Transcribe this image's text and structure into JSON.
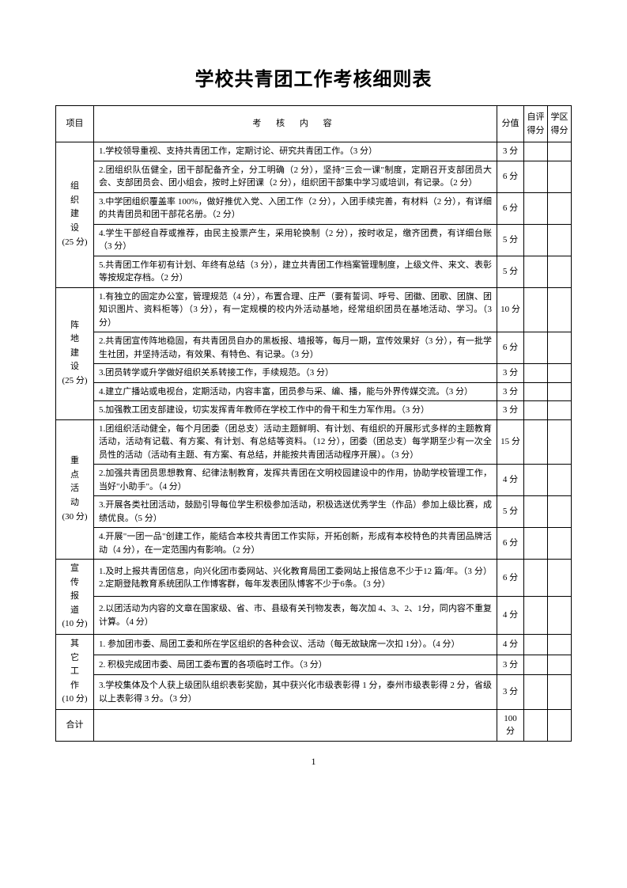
{
  "title": "学校共青团工作考核细则表",
  "headers": {
    "project": "项目",
    "content": "考 核 内 容",
    "score": "分值",
    "self": "自评得分",
    "district": "学区得分"
  },
  "sections": [
    {
      "name": "组织建设",
      "total": "25 分",
      "rows": [
        {
          "text": "1.学校领导重视、支持共青团工作，定期讨论、研究共青团工作。（3 分）",
          "score": "3 分"
        },
        {
          "text": "2.团组织队伍健全，团干部配备齐全，分工明确（2 分），坚持\"三会一课\"制度，定期召开支部团员大会、支部团员会、团小组会，按时上好团课（2 分），组织团干部集中学习或培训，有记录。（2 分）",
          "score": "6 分"
        },
        {
          "text": "3.中学团组织覆盖率 100%，做好推优入党、入团工作（2 分），入团手续完善，有材料（2 分），有详细的共青团员和团干部花名册。（2 分）",
          "score": "6 分"
        },
        {
          "text": "4.学生干部经自荐或推荐，由民主投票产生，采用轮换制（2 分），按时收足，缴齐团费，有详细台账（3 分）",
          "score": "5 分"
        },
        {
          "text": "5.共青团工作年初有计划、年终有总结（3 分），建立共青团工作档案管理制度，上级文件、来文、表彰等按规定存档。（2 分）",
          "score": "5 分"
        }
      ]
    },
    {
      "name": "阵地建设",
      "total": "25 分",
      "rows": [
        {
          "text": "1.有独立的固定办公室，管理规范（4 分），布置合理、庄严（要有誓词、呼号、团徽、团歌、团旗、团知识图片、资料柜等）（3 分），有一定规模的校内外活动基地，经常组织团员在基地活动、学习。（3 分）",
          "score": "10 分"
        },
        {
          "text": "2.共青团宣传阵地稳固，有共青团员自办的黑板报、墙报等，每月一期，宣传效果好（3 分），有一批学生社团，并坚持活动，有效果、有特色、有记录。（3 分）",
          "score": "6 分"
        },
        {
          "text": "3.团员转学或升学做好组织关系转接工作，手续规范。（3 分）",
          "score": "3 分"
        },
        {
          "text": "4.建立广播站或电视台，定期活动，内容丰富，团员参与采、编、播，能与外界传媒交流。（3 分）",
          "score": "3 分"
        },
        {
          "text": "5.加强教工团支部建设，切实发挥青年教师在学校工作中的骨干和生力军作用。（3 分）",
          "score": "3 分"
        }
      ]
    },
    {
      "name": "重点活动",
      "total": "30 分",
      "rows": [
        {
          "text": "1.团组织活动健全，每个月团委（团总支）活动主题鲜明、有计划、有组织的开展形式多样的主题教育活动，活动有记载、有方案、有计划、有总结等资料。（12 分），团委（团总支）每学期至少有一次全员性的活动（活动有主题、有方案、有总结，并能按共青团活动程序开展）。（3 分）",
          "score": "15 分"
        },
        {
          "text": "2.加强共青团员思想教育、纪律法制教育，发挥共青团在文明校园建设中的作用，协助学校管理工作，当好\"小助手\"。（4 分）",
          "score": "4 分"
        },
        {
          "text": "3.开展各类社团活动，鼓励引导每位学生积极参加活动，积极选送优秀学生（作品）参加上级比赛，成绩优良。（5 分）",
          "score": "5 分"
        },
        {
          "text": "4.开展\"一团一品\"创建工作，能结合本校共青团工作实际，开拓创新，形成有本校特色的共青团品牌活动（4 分），在一定范围内有影响。（2 分）",
          "score": "6 分"
        }
      ]
    },
    {
      "name": "宣传报道",
      "total": "10 分",
      "rows": [
        {
          "text": "1.及时上报共青团信息，向兴化团市委网站、兴化教育局团工委网站上报信息不少于12 篇/年。（3 分）2.定期登陆教育系统团队工作博客群，每年发表团队博客不少于6条。（3 分）",
          "score": "6 分"
        },
        {
          "text": "2.以团活动为内容的文章在国家级、省、市、县级有关刊物发表，每次加 4、3、2、1分，同内容不重复计算。（4 分）",
          "score": "4 分"
        }
      ]
    },
    {
      "name": "其它工作",
      "total": "10 分",
      "rows": [
        {
          "text": "1. 参加团市委、局团工委和所在学区组织的各种会议、活动（每无故缺席一次扣 1分）。（4 分）",
          "score": "4 分"
        },
        {
          "text": "2. 积极完成团市委、局团工委布置的各项临时工作。（3 分）",
          "score": "3 分"
        },
        {
          "text": "3.学校集体及个人获上级团队组织表彰奖励，其中获兴化市级表彰得 1 分，泰州市级表彰得 2 分，省级以上表彰得 3 分。（3 分）",
          "score": "3 分"
        }
      ]
    }
  ],
  "totalRow": {
    "label": "合计",
    "score": "100 分"
  },
  "pageNumber": "1",
  "style": {
    "border_color": "#000000",
    "background_color": "#ffffff",
    "title_fontsize": 24,
    "cell_fontsize": 11,
    "font_family": "SimSun"
  }
}
